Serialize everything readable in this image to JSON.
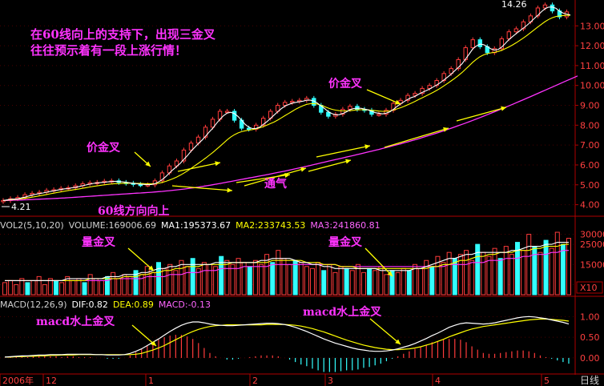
{
  "annotations": {
    "headline_1": "在60线向上的支持下，出现三金叉",
    "headline_2": "往往预示着有一段上涨行情！",
    "price_cross_1": "价金叉",
    "price_cross_2": "价金叉",
    "vent": "通气",
    "ma60_rising": "60线方向向上",
    "volume_cross_1": "量金叉",
    "volume_cross_2": "量金叉",
    "macd_cross_1": "macd水上金叉",
    "macd_cross_2": "macd水上金叉",
    "price_high": "14.26",
    "price_low": "4.21"
  },
  "volume_legend": {
    "name": "VOL2(5,10,20)",
    "volume": "VOLUME:169006.69",
    "ma1": "MA1:195373.67",
    "ma2": "MA2:233743.53",
    "ma3": "MA3:241860.81"
  },
  "macd_legend": {
    "name": "MACD(12,26,9)",
    "dif": "DIF:0.82",
    "dea": "DEA:0.89",
    "macd": "MACD:-0.13"
  },
  "time_axis": {
    "labels": [
      "2006年",
      "12",
      "1",
      "2",
      "3",
      "4",
      "5"
    ],
    "period": "日线"
  },
  "colors": {
    "up": "#ff3b3b",
    "down": "#33ffff",
    "ma_white": "#ffffff",
    "ma_yellow": "#ffff00",
    "ma_magenta": "#ff33ff",
    "grid": "#b00000",
    "axis_text": "#ff4040",
    "annotation": "#ff33ff",
    "arrow": "#ffff00"
  },
  "chart_data": [
    {
      "type": "line",
      "title": "price",
      "y_tick_labels": [
        "4.00",
        "5.00",
        "6.00",
        "7.00",
        "8.00",
        "9.00",
        "10.00",
        "11.00",
        "12.00",
        "13.00"
      ],
      "ylim": [
        3.5,
        14.3
      ],
      "points": 158,
      "close": [
        4.21,
        4.26,
        4.3,
        4.32,
        4.36,
        4.45,
        4.5,
        4.52,
        4.57,
        4.58,
        4.62,
        4.66,
        4.72,
        4.74,
        4.75,
        4.8,
        4.82,
        4.87,
        4.85,
        4.9,
        4.95,
        5.0,
        5.05,
        5.08,
        5.1,
        5.12,
        5.12,
        5.15,
        5.18,
        5.18,
        5.2,
        5.15,
        5.12,
        5.1,
        5.08,
        5.05,
        5.02,
        5.0,
        5.0,
        5.02,
        5.0,
        5.05,
        5.2,
        5.45,
        5.6,
        5.75,
        5.95,
        6.05,
        6.2,
        6.45,
        6.75,
        6.9,
        7.1,
        7.2,
        7.4,
        7.6,
        7.9,
        8.05,
        8.3,
        8.55,
        8.7,
        8.8,
        8.7,
        8.5,
        8.25,
        7.95,
        7.85,
        7.65,
        7.8,
        7.9,
        8.0,
        8.15,
        8.35,
        8.5,
        8.7,
        8.85,
        9.0,
        9.1,
        9.15,
        9.1,
        9.2,
        9.2,
        9.25,
        9.3,
        9.35,
        9.2,
        9.0,
        8.8,
        8.65,
        8.5,
        8.45,
        8.45,
        8.55,
        8.7,
        8.8,
        8.9,
        8.95,
        8.9,
        8.8,
        8.7,
        8.75,
        8.7,
        8.55,
        8.45,
        8.55,
        8.6,
        8.75,
        8.95,
        9.1,
        9.3,
        9.25,
        9.35,
        9.5,
        9.55,
        9.6,
        9.75,
        9.85,
        9.9,
        10.0,
        10.1,
        10.25,
        10.45,
        10.6,
        10.7,
        10.85,
        11.0,
        11.3,
        11.6,
        11.9,
        12.1,
        12.3,
        12.15,
        11.95,
        11.75,
        11.65,
        11.7,
        11.85,
        12.1,
        12.35,
        12.55,
        12.7,
        12.6,
        12.85,
        13.1,
        13.2,
        13.3,
        13.5,
        13.75,
        13.9,
        14.1,
        14.05,
        13.9,
        13.75,
        13.55,
        13.45,
        13.5,
        13.7,
        13.6
      ],
      "ma_white": [
        4.21,
        4.236,
        4.263,
        4.28,
        4.29,
        4.338,
        4.378,
        4.43,
        4.48,
        4.524,
        4.558,
        4.59,
        4.63,
        4.664,
        4.698,
        4.734,
        4.766,
        4.796,
        4.808,
        4.848,
        4.878,
        4.914,
        4.954,
        4.996,
        5.036,
        5.07,
        5.094,
        5.114,
        5.134,
        5.15,
        5.166,
        5.176,
        5.166,
        5.15,
        5.13,
        5.1,
        5.074,
        5.05,
        5.03,
        5.018,
        5.008,
        5.014,
        5.054,
        5.144,
        5.26,
        5.41,
        5.59,
        5.76,
        5.92,
        6.08,
        6.28,
        6.47,
        6.69,
        6.88,
        7.07,
        7.24,
        7.44,
        7.65,
        7.85,
        8.08,
        8.3,
        8.48,
        8.61,
        8.65,
        8.59,
        8.44,
        8.25,
        8.04,
        7.9,
        7.83,
        7.84,
        7.9,
        8.04,
        8.18,
        8.34,
        8.51,
        8.68,
        8.83,
        8.96,
        9.04,
        9.11,
        9.15,
        9.18,
        9.21,
        9.26,
        9.26,
        9.22,
        9.11,
        8.97,
        8.83,
        8.68,
        8.58,
        8.52,
        8.53,
        8.59,
        8.67,
        8.78,
        8.84,
        8.85,
        8.85,
        8.81,
        8.77,
        8.7,
        8.63,
        8.6,
        8.57,
        8.6,
        8.67,
        8.79,
        8.94,
        9.07,
        9.19,
        9.3,
        9.39,
        9.45,
        9.56,
        9.65,
        9.73,
        9.82,
        9.92,
        10.02,
        10.14,
        10.28,
        10.42,
        10.57,
        10.74,
        10.91,
        11.09,
        11.33,
        11.58,
        11.84,
        11.99,
        12.08,
        12.05,
        11.96,
        11.84,
        11.78,
        11.81,
        11.93,
        12.11,
        12.31,
        12.46,
        12.61,
        12.75,
        12.89,
        13.03,
        13.19,
        13.37,
        13.53,
        13.71,
        13.86,
        13.94,
        13.95,
        13.88,
        13.74,
        13.64,
        13.59,
        13.55
      ],
      "ma_yellow": [
        4.21,
        4.228,
        4.245,
        4.262,
        4.278,
        4.298,
        4.32,
        4.35,
        4.38,
        4.41,
        4.444,
        4.475,
        4.51,
        4.546,
        4.582,
        4.616,
        4.646,
        4.68,
        4.708,
        4.736,
        4.764,
        4.794,
        4.824,
        4.858,
        4.89,
        4.922,
        4.948,
        4.974,
        5.0,
        5.022,
        5.042,
        5.058,
        5.068,
        5.076,
        5.08,
        5.08,
        5.078,
        5.072,
        5.066,
        5.06,
        5.054,
        5.05,
        5.058,
        5.078,
        5.12,
        5.172,
        5.236,
        5.31,
        5.392,
        5.484,
        5.588,
        5.7,
        5.824,
        5.954,
        6.08,
        6.208,
        6.34,
        6.484,
        6.628,
        6.78,
        6.938,
        7.1,
        7.262,
        7.406,
        7.52,
        7.61,
        7.676,
        7.72,
        7.75,
        7.78,
        7.82,
        7.87,
        7.93,
        8.0,
        8.08,
        8.16,
        8.26,
        8.37,
        8.48,
        8.59,
        8.7,
        8.81,
        8.9,
        8.98,
        9.05,
        9.08,
        9.09,
        9.06,
        9.0,
        8.93,
        8.86,
        8.8,
        8.76,
        8.73,
        8.72,
        8.72,
        8.73,
        8.75,
        8.77,
        8.78,
        8.78,
        8.77,
        8.75,
        8.73,
        8.71,
        8.7,
        8.7,
        8.72,
        8.76,
        8.82,
        8.88,
        8.95,
        9.03,
        9.11,
        9.2,
        9.29,
        9.38,
        9.47,
        9.56,
        9.65,
        9.75,
        9.86,
        9.98,
        10.1,
        10.23,
        10.36,
        10.5,
        10.65,
        10.82,
        10.99,
        11.17,
        11.32,
        11.45,
        11.54,
        11.6,
        11.64,
        11.67,
        11.71,
        11.77,
        11.85,
        11.94,
        12.04,
        12.15,
        12.27,
        12.39,
        12.52,
        12.66,
        12.8,
        12.94,
        13.08,
        13.21,
        13.32,
        13.41,
        13.47,
        13.5,
        13.52,
        13.53,
        13.53
      ],
      "ma_magenta": [
        4.21,
        4.215,
        4.22,
        4.226,
        4.232,
        4.238,
        4.244,
        4.252,
        4.26,
        4.268,
        4.276,
        4.284,
        4.292,
        4.3,
        4.31,
        4.32,
        4.33,
        4.34,
        4.35,
        4.362,
        4.374,
        4.386,
        4.398,
        4.41,
        4.422,
        4.434,
        4.446,
        4.458,
        4.47,
        4.482,
        4.494,
        4.506,
        4.518,
        4.53,
        4.542,
        4.554,
        4.566,
        4.578,
        4.59,
        4.602,
        4.614,
        4.626,
        4.64,
        4.655,
        4.67,
        4.687,
        4.705,
        4.724,
        4.744,
        4.765,
        4.787,
        4.81,
        4.834,
        4.86,
        4.886,
        4.914,
        4.942,
        4.972,
        5.003,
        5.035,
        5.068,
        5.102,
        5.136,
        5.17,
        5.204,
        5.238,
        5.272,
        5.306,
        5.34,
        5.374,
        5.408,
        5.442,
        5.476,
        5.51,
        5.546,
        5.582,
        5.618,
        5.656,
        5.694,
        5.732,
        5.772,
        5.812,
        5.852,
        5.892,
        5.934,
        5.976,
        6.018,
        6.06,
        6.102,
        6.144,
        6.186,
        6.228,
        6.27,
        6.312,
        6.354,
        6.396,
        6.438,
        6.48,
        6.522,
        6.564,
        6.606,
        6.65,
        6.694,
        6.738,
        6.782,
        6.828,
        6.874,
        6.92,
        6.968,
        7.016,
        7.064,
        7.114,
        7.164,
        7.216,
        7.268,
        7.322,
        7.376,
        7.432,
        7.488,
        7.546,
        7.604,
        7.664,
        7.724,
        7.786,
        7.848,
        7.912,
        7.976,
        8.042,
        8.108,
        8.176,
        8.244,
        8.314,
        8.384,
        8.456,
        8.528,
        8.6,
        8.674,
        8.748,
        8.822,
        8.898,
        8.974,
        9.05,
        9.128,
        9.206,
        9.284,
        9.362,
        9.44,
        9.52,
        9.6,
        9.68,
        9.76,
        9.84,
        9.92,
        10.0,
        10.08,
        10.16,
        10.24,
        10.32,
        10.4,
        10.48
      ]
    },
    {
      "type": "bar",
      "title": "volume",
      "y_tick_labels": [
        "5000",
        "15000",
        "25000",
        "30000"
      ],
      "unit": "X10",
      "bars": 100,
      "values": [
        6,
        7,
        5,
        8,
        6,
        7,
        9,
        5,
        8,
        7,
        6,
        9,
        7,
        8,
        6,
        10,
        8,
        7,
        9,
        11,
        8,
        10,
        9,
        12,
        10,
        14,
        11,
        16,
        13,
        15,
        12,
        17,
        14,
        18,
        13,
        16,
        15,
        14,
        19,
        17,
        15,
        18,
        16,
        14,
        17,
        15,
        20,
        16,
        22,
        18,
        15,
        17,
        16,
        14,
        13,
        16,
        12,
        15,
        11,
        14,
        13,
        12,
        15,
        11,
        13,
        12,
        14,
        10,
        12,
        11,
        13,
        12,
        15,
        13,
        17,
        14,
        19,
        16,
        21,
        18,
        20,
        22,
        17,
        25,
        21,
        19,
        23,
        18,
        24,
        20,
        26,
        22,
        30,
        24,
        21,
        27,
        23,
        31,
        25,
        28
      ],
      "down_bars": [
        4,
        9,
        14,
        18,
        23,
        27,
        33,
        38,
        43,
        47,
        51,
        56,
        60,
        64,
        68,
        71,
        75,
        79,
        83,
        87,
        90,
        93,
        95,
        98
      ],
      "ma_white": [
        7,
        7,
        7,
        7,
        7,
        7,
        7,
        7,
        7,
        7,
        7,
        8,
        8,
        8,
        8,
        8,
        8,
        8,
        9,
        9,
        9,
        10,
        10,
        10,
        11,
        11,
        12,
        13,
        13,
        14,
        14,
        15,
        15,
        15,
        15,
        15,
        15,
        16,
        16,
        16,
        16,
        16,
        16,
        16,
        16,
        17,
        17,
        18,
        18,
        18,
        18,
        17,
        16,
        16,
        15,
        15,
        14,
        14,
        13,
        13,
        13,
        13,
        13,
        13,
        13,
        13,
        12,
        12,
        12,
        12,
        12,
        12,
        13,
        13,
        14,
        15,
        16,
        17,
        18,
        18,
        19,
        20,
        20,
        21,
        21,
        21,
        21,
        21,
        21,
        22,
        22,
        23,
        24,
        24,
        24,
        25,
        25,
        26,
        26,
        26
      ],
      "ma_yellow": [
        7,
        7,
        7,
        7,
        7,
        7,
        7,
        7,
        7,
        7,
        7,
        7,
        7,
        7,
        7,
        8,
        8,
        8,
        8,
        8,
        8,
        9,
        9,
        9,
        10,
        10,
        11,
        11,
        12,
        12,
        13,
        13,
        14,
        14,
        14,
        15,
        15,
        15,
        15,
        15,
        16,
        16,
        16,
        16,
        16,
        16,
        16,
        17,
        17,
        17,
        17,
        17,
        17,
        16,
        16,
        16,
        15,
        15,
        15,
        14,
        14,
        14,
        13,
        13,
        13,
        13,
        13,
        13,
        13,
        13,
        13,
        13,
        13,
        13,
        13,
        14,
        14,
        15,
        15,
        16,
        17,
        17,
        18,
        19,
        19,
        20,
        20,
        21,
        21,
        21,
        22,
        22,
        22,
        23,
        23,
        24,
        24,
        24,
        25,
        25
      ],
      "ma_magenta": [
        7,
        7,
        7,
        7,
        7,
        7,
        7,
        7,
        7,
        7,
        7,
        7,
        7,
        7,
        7,
        7,
        7,
        7,
        7,
        8,
        8,
        8,
        8,
        8,
        8,
        9,
        9,
        9,
        9,
        10,
        10,
        10,
        11,
        11,
        11,
        12,
        12,
        12,
        13,
        13,
        13,
        13,
        14,
        14,
        14,
        14,
        14,
        15,
        15,
        15,
        15,
        15,
        15,
        15,
        15,
        15,
        15,
        15,
        15,
        14,
        14,
        14,
        14,
        14,
        14,
        14,
        14,
        14,
        14,
        14,
        14,
        14,
        14,
        14,
        14,
        14,
        14,
        14,
        15,
        15,
        15,
        15,
        16,
        16,
        16,
        17,
        17,
        17,
        18,
        18,
        18,
        19,
        19,
        20,
        20,
        20,
        21,
        21,
        22,
        22
      ]
    },
    {
      "type": "line",
      "title": "MACD",
      "y_tick_labels": [
        "1.00",
        "0.50",
        "0.00"
      ],
      "ylim": [
        -0.35,
        1.2
      ],
      "dif": [
        0.02,
        0.03,
        0.04,
        0.05,
        0.05,
        0.06,
        0.07,
        0.07,
        0.08,
        0.08,
        0.08,
        0.09,
        0.09,
        0.09,
        0.09,
        0.09,
        0.08,
        0.08,
        0.07,
        0.07,
        0.07,
        0.08,
        0.11,
        0.16,
        0.22,
        0.3,
        0.38,
        0.46,
        0.55,
        0.64,
        0.72,
        0.79,
        0.84,
        0.87,
        0.87,
        0.85,
        0.82,
        0.8,
        0.79,
        0.78,
        0.78,
        0.79,
        0.8,
        0.81,
        0.82,
        0.83,
        0.84,
        0.84,
        0.83,
        0.81,
        0.78,
        0.74,
        0.69,
        0.64,
        0.58,
        0.52,
        0.46,
        0.41,
        0.36,
        0.32,
        0.28,
        0.24,
        0.21,
        0.19,
        0.17,
        0.16,
        0.16,
        0.17,
        0.19,
        0.22,
        0.26,
        0.3,
        0.35,
        0.41,
        0.47,
        0.54,
        0.6,
        0.67,
        0.74,
        0.79,
        0.83,
        0.85,
        0.84,
        0.83,
        0.82,
        0.83,
        0.85,
        0.88,
        0.91,
        0.94,
        0.97,
        0.99,
        1.0,
        0.99,
        0.97,
        0.95,
        0.92,
        0.89,
        0.86,
        0.82
      ],
      "dea": [
        0.02,
        0.02,
        0.03,
        0.03,
        0.04,
        0.04,
        0.05,
        0.05,
        0.06,
        0.06,
        0.07,
        0.07,
        0.07,
        0.08,
        0.08,
        0.08,
        0.08,
        0.08,
        0.08,
        0.08,
        0.08,
        0.08,
        0.08,
        0.09,
        0.11,
        0.15,
        0.19,
        0.24,
        0.3,
        0.37,
        0.44,
        0.51,
        0.58,
        0.64,
        0.69,
        0.73,
        0.76,
        0.78,
        0.79,
        0.8,
        0.8,
        0.8,
        0.8,
        0.8,
        0.8,
        0.8,
        0.81,
        0.81,
        0.81,
        0.81,
        0.8,
        0.79,
        0.77,
        0.74,
        0.71,
        0.67,
        0.63,
        0.58,
        0.53,
        0.48,
        0.43,
        0.39,
        0.35,
        0.31,
        0.28,
        0.25,
        0.23,
        0.21,
        0.2,
        0.2,
        0.21,
        0.22,
        0.24,
        0.27,
        0.31,
        0.35,
        0.4,
        0.45,
        0.51,
        0.56,
        0.61,
        0.66,
        0.7,
        0.73,
        0.76,
        0.78,
        0.8,
        0.82,
        0.84,
        0.86,
        0.88,
        0.9,
        0.92,
        0.93,
        0.94,
        0.94,
        0.93,
        0.92,
        0.91,
        0.89
      ]
    }
  ]
}
